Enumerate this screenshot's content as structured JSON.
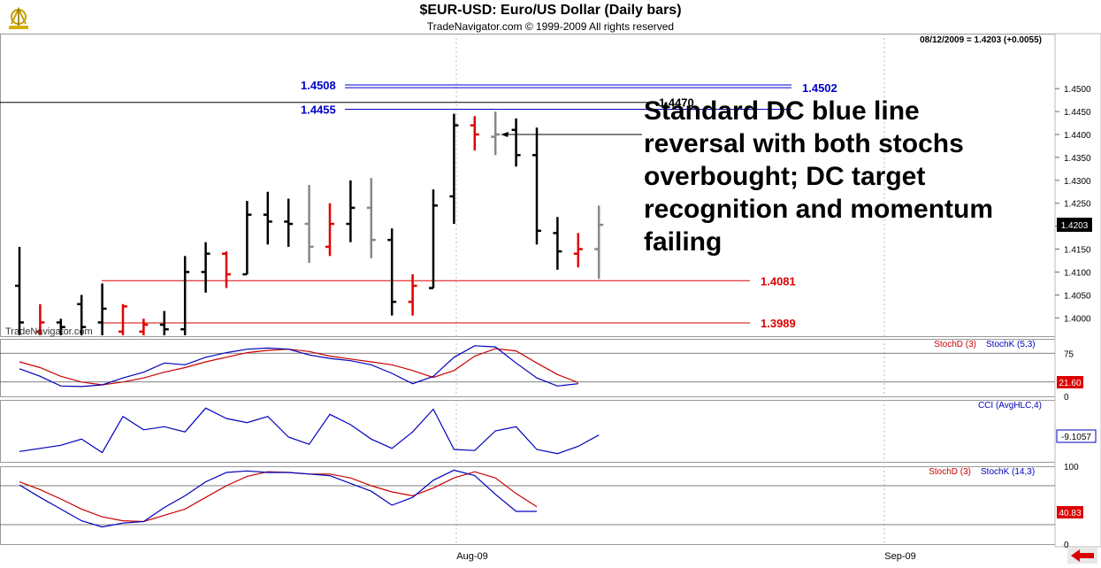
{
  "header": {
    "title": "$EUR-USD:  Euro/US Dollar  (Daily bars)",
    "subtitle": "TradeNavigator.com © 1999-2009 All rights reserved",
    "readout": "08/12/2009 = 1.4203 (+0.0055)"
  },
  "watermark": "TradeNavigator.com",
  "annotation": {
    "lines": [
      "Standard DC blue line",
      "reversal with both stochs",
      "overbought; DC target",
      "recognition and momentum",
      "failing"
    ]
  },
  "colors": {
    "up": "#e00000",
    "down": "#000000",
    "neutral": "#888888",
    "stochK": "#0000bb",
    "stochD": "#cc0000",
    "level_blue": "#0000cc",
    "level_red": "#dd0000"
  },
  "chart_data": [
    {
      "type": "ohlc",
      "panel": "price",
      "x_labels": [
        "Aug-09",
        "Sep-09"
      ],
      "y_ticks": [
        "1.4500",
        "1.4450",
        "1.4400",
        "1.4350",
        "1.4300",
        "1.4250",
        "1.4200",
        "1.4150",
        "1.4100",
        "1.4050",
        "1.4000"
      ],
      "ylim": [
        1.396,
        1.462
      ],
      "last_value": "1.4203",
      "levels": [
        {
          "label": "1.4508",
          "value": 1.4508,
          "color": "blue"
        },
        {
          "label": "1.4502",
          "value": 1.4502,
          "color": "blue"
        },
        {
          "label": "1.4470",
          "value": 1.447,
          "color": "black"
        },
        {
          "label": "1.4455",
          "value": 1.4455,
          "color": "blue"
        },
        {
          "label": "1.4081",
          "value": 1.4081,
          "color": "red"
        },
        {
          "label": "1.3989",
          "value": 1.3989,
          "color": "red"
        }
      ],
      "bars": [
        {
          "h": 1.4155,
          "l": 1.396,
          "o": 1.407,
          "c": 1.399,
          "k": "down"
        },
        {
          "h": 1.403,
          "l": 1.396,
          "o": 1.397,
          "c": 1.399,
          "k": "up"
        },
        {
          "h": 1.3998,
          "l": 1.396,
          "o": 1.399,
          "c": 1.398,
          "k": "down"
        },
        {
          "h": 1.405,
          "l": 1.396,
          "o": 1.403,
          "c": 1.398,
          "k": "down"
        },
        {
          "h": 1.4075,
          "l": 1.396,
          "o": 1.399,
          "c": 1.402,
          "k": "down"
        },
        {
          "h": 1.403,
          "l": 1.396,
          "o": 1.397,
          "c": 1.4025,
          "k": "up"
        },
        {
          "h": 1.3998,
          "l": 1.396,
          "o": 1.397,
          "c": 1.3985,
          "k": "up"
        },
        {
          "h": 1.4015,
          "l": 1.396,
          "o": 1.3985,
          "c": 1.3975,
          "k": "down"
        },
        {
          "h": 1.4135,
          "l": 1.396,
          "o": 1.3975,
          "c": 1.41,
          "k": "down"
        },
        {
          "h": 1.4165,
          "l": 1.4055,
          "o": 1.41,
          "c": 1.414,
          "k": "down"
        },
        {
          "h": 1.4145,
          "l": 1.4065,
          "o": 1.414,
          "c": 1.4095,
          "k": "up"
        },
        {
          "h": 1.4255,
          "l": 1.4095,
          "o": 1.4095,
          "c": 1.4225,
          "k": "down"
        },
        {
          "h": 1.4275,
          "l": 1.416,
          "o": 1.4225,
          "c": 1.421,
          "k": "down"
        },
        {
          "h": 1.426,
          "l": 1.4155,
          "o": 1.421,
          "c": 1.4205,
          "k": "down"
        },
        {
          "h": 1.429,
          "l": 1.412,
          "o": 1.4205,
          "c": 1.4155,
          "k": "neutral"
        },
        {
          "h": 1.425,
          "l": 1.4135,
          "o": 1.4155,
          "c": 1.4205,
          "k": "up"
        },
        {
          "h": 1.43,
          "l": 1.4165,
          "o": 1.4205,
          "c": 1.424,
          "k": "down"
        },
        {
          "h": 1.4305,
          "l": 1.413,
          "o": 1.424,
          "c": 1.417,
          "k": "neutral"
        },
        {
          "h": 1.4195,
          "l": 1.4005,
          "o": 1.417,
          "c": 1.4035,
          "k": "down"
        },
        {
          "h": 1.4095,
          "l": 1.4005,
          "o": 1.4035,
          "c": 1.407,
          "k": "up"
        },
        {
          "h": 1.428,
          "l": 1.4065,
          "o": 1.4065,
          "c": 1.4245,
          "k": "down"
        },
        {
          "h": 1.4445,
          "l": 1.4205,
          "o": 1.4265,
          "c": 1.442,
          "k": "down"
        },
        {
          "h": 1.444,
          "l": 1.4365,
          "o": 1.442,
          "c": 1.44,
          "k": "up"
        },
        {
          "h": 1.445,
          "l": 1.4355,
          "o": 1.4395,
          "c": 1.44,
          "k": "neutral"
        },
        {
          "h": 1.4435,
          "l": 1.433,
          "o": 1.441,
          "c": 1.4355,
          "k": "down"
        },
        {
          "h": 1.4415,
          "l": 1.416,
          "o": 1.4355,
          "c": 1.419,
          "k": "down"
        },
        {
          "h": 1.422,
          "l": 1.4105,
          "o": 1.4185,
          "c": 1.4145,
          "k": "down"
        },
        {
          "h": 1.4185,
          "l": 1.411,
          "o": 1.414,
          "c": 1.415,
          "k": "up"
        },
        {
          "h": 1.4245,
          "l": 1.4085,
          "o": 1.415,
          "c": 1.4203,
          "k": "neutral"
        }
      ]
    },
    {
      "type": "line",
      "panel": "stoch1",
      "legend": [
        "StochD (3)",
        "StochK (5,3)"
      ],
      "y_ticks": [
        "75",
        "0"
      ],
      "ylim": [
        0,
        100
      ],
      "last_value": "21.60",
      "series": [
        {
          "name": "StochK (5,3)",
          "values": [
            48,
            35,
            18,
            17,
            20,
            32,
            42,
            58,
            55,
            68,
            76,
            82,
            84,
            82,
            72,
            66,
            62,
            55,
            40,
            22,
            35,
            68,
            88,
            86,
            58,
            32,
            18,
            22,
            null
          ]
        },
        {
          "name": "StochD (3)",
          "values": [
            60,
            50,
            35,
            25,
            20,
            25,
            32,
            42,
            50,
            60,
            68,
            76,
            80,
            82,
            78,
            70,
            65,
            60,
            55,
            45,
            33,
            45,
            70,
            83,
            79,
            58,
            38,
            24,
            null
          ]
        }
      ]
    },
    {
      "type": "line",
      "panel": "cci",
      "legend": [
        "CCI (AvgHLC,4)"
      ],
      "last_value": "-9.1057",
      "ylim": [
        -150,
        150
      ],
      "series": [
        {
          "name": "CCI (AvgHLC,4)",
          "values": [
            -100,
            -85,
            -70,
            -40,
            -105,
            70,
            5,
            20,
            -5,
            110,
            60,
            40,
            70,
            -30,
            -65,
            80,
            30,
            -40,
            -85,
            -5,
            105,
            -90,
            -95,
            0,
            20,
            -90,
            -110,
            -75,
            -20
          ]
        }
      ]
    },
    {
      "type": "line",
      "panel": "stoch2",
      "legend": [
        "StochD (3)",
        "StochK (14,3)"
      ],
      "y_ticks": [
        "100",
        "0"
      ],
      "ylim": [
        0,
        100
      ],
      "last_value": "40.83",
      "series": [
        {
          "name": "StochK (14,3)",
          "values": [
            76,
            60,
            45,
            30,
            22,
            27,
            29,
            47,
            62,
            80,
            92,
            94,
            92,
            92,
            90,
            88,
            78,
            68,
            50,
            60,
            82,
            95,
            88,
            64,
            42,
            42,
            null,
            null,
            null
          ]
        },
        {
          "name": "StochD (3)",
          "values": [
            80,
            70,
            58,
            45,
            35,
            30,
            29,
            37,
            45,
            60,
            75,
            87,
            93,
            92,
            90,
            90,
            85,
            75,
            67,
            62,
            72,
            85,
            93,
            85,
            65,
            48,
            null,
            null,
            null
          ]
        }
      ]
    }
  ]
}
